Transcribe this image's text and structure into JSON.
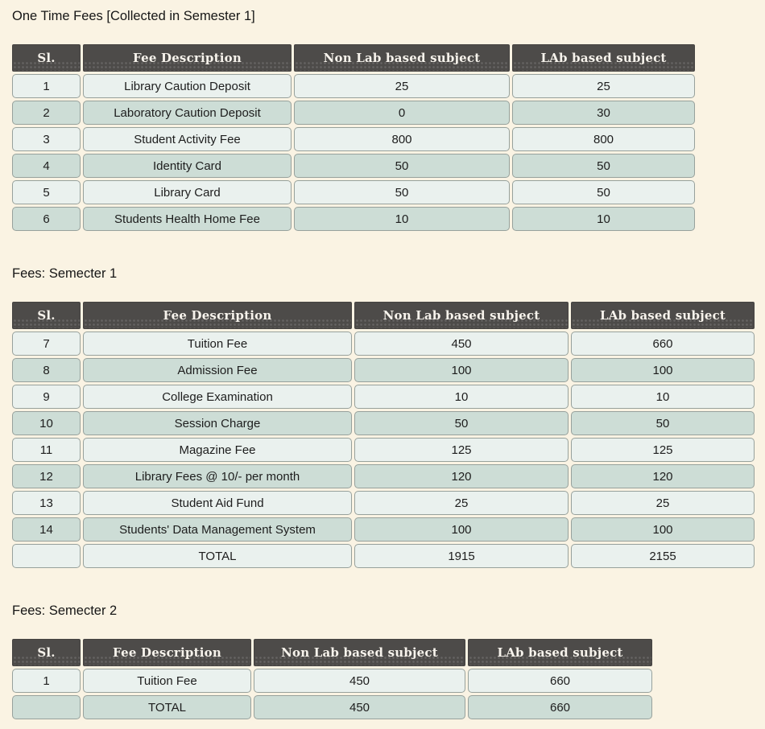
{
  "colors": {
    "page_bg": "#faf3e3",
    "header_bg": "#4d4b49",
    "header_text": "#f7f3ec",
    "row_light": "#eaf1ee",
    "row_dark": "#cdddd6",
    "cell_border": "#97a19c",
    "text": "#1d1d1d"
  },
  "sections": [
    {
      "title": "One Time Fees [Collected in Semester 1]",
      "columns": [
        "Sl.",
        "Fee Description",
        "Non Lab based subject",
        "LAb based subject"
      ],
      "rows": [
        [
          "1",
          "Library Caution Deposit",
          "25",
          "25"
        ],
        [
          "2",
          "Laboratory Caution Deposit",
          "0",
          "30"
        ],
        [
          "3",
          "Student Activity Fee",
          "800",
          "800"
        ],
        [
          "4",
          "Identity Card",
          "50",
          "50"
        ],
        [
          "5",
          "Library Card",
          "50",
          "50"
        ],
        [
          "6",
          "Students Health Home Fee",
          "10",
          "10"
        ]
      ]
    },
    {
      "title": "Fees: Semecter 1",
      "columns": [
        "Sl.",
        "Fee Description",
        "Non Lab based subject",
        "LAb based subject"
      ],
      "rows": [
        [
          "7",
          "Tuition Fee",
          "450",
          "660"
        ],
        [
          "8",
          "Admission Fee",
          "100",
          "100"
        ],
        [
          "9",
          "College Examination",
          "10",
          "10"
        ],
        [
          "10",
          "Session Charge",
          "50",
          "50"
        ],
        [
          "11",
          "Magazine Fee",
          "125",
          "125"
        ],
        [
          "12",
          "Library Fees @ 10/- per month",
          "120",
          "120"
        ],
        [
          "13",
          "Student Aid Fund",
          "25",
          "25"
        ],
        [
          "14",
          "Students' Data Management System",
          "100",
          "100"
        ],
        [
          "",
          "TOTAL",
          "1915",
          "2155"
        ]
      ]
    },
    {
      "title": "Fees: Semecter 2",
      "columns": [
        "Sl.",
        "Fee Description",
        "Non Lab based subject",
        "LAb based subject"
      ],
      "rows": [
        [
          "1",
          "Tuition Fee",
          "450",
          "660"
        ],
        [
          "",
          "TOTAL",
          "450",
          "660"
        ]
      ]
    }
  ]
}
